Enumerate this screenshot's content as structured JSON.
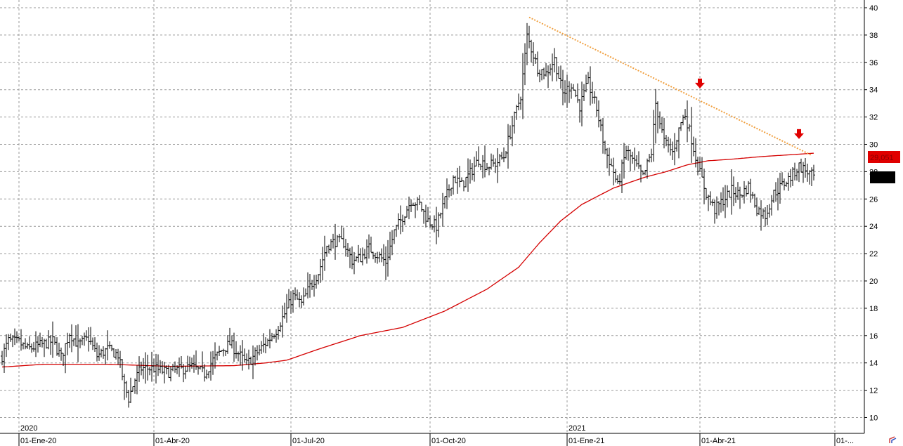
{
  "chart_data": {
    "type": "bar",
    "subtype": "ohlc",
    "title": "",
    "xlabel": "",
    "ylabel": "",
    "ylim": [
      9,
      40.5
    ],
    "y_ticks": [
      10,
      12,
      14,
      16,
      18,
      20,
      22,
      24,
      26,
      28,
      30,
      32,
      34,
      36,
      38,
      40
    ],
    "y_tick_labels": [
      "10",
      "12",
      "14",
      "16",
      "18",
      "20",
      "22",
      "24",
      "26",
      "28",
      "30",
      "32",
      "34",
      "36",
      "38",
      "40"
    ],
    "x_ticks": [
      {
        "label": "01-Ene-20",
        "index": 8
      },
      {
        "label": "01-Abr-20",
        "index": 72
      },
      {
        "label": "01-Jul-20",
        "index": 137
      },
      {
        "label": "01-Oct-20",
        "index": 203
      },
      {
        "label": "01-Ene-21",
        "index": 268
      },
      {
        "label": "01-Abr-21",
        "index": 331
      },
      {
        "label": "01-...",
        "index": 395
      }
    ],
    "year_labels": [
      {
        "label": "2020",
        "index": 8
      },
      {
        "label": "2021",
        "index": 268
      }
    ],
    "last_price_label": "29,051",
    "grid": true,
    "colors": {
      "price_bars": "#000000",
      "moving_average": "#d40000",
      "trendline": "#f0a040",
      "arrows": "#e00000",
      "price_tag_bg": "#e00000",
      "grid": "#9a9a9a"
    },
    "price_anchors": [
      [
        0,
        14.5
      ],
      [
        3,
        15.6
      ],
      [
        8,
        15.5
      ],
      [
        12,
        15.0
      ],
      [
        18,
        15.3
      ],
      [
        24,
        15.6
      ],
      [
        28,
        14.4
      ],
      [
        32,
        16.2
      ],
      [
        36,
        15.3
      ],
      [
        41,
        15.8
      ],
      [
        45,
        14.5
      ],
      [
        50,
        15.0
      ],
      [
        55,
        14.6
      ],
      [
        58,
        12.3
      ],
      [
        60,
        11.4
      ],
      [
        63,
        12.8
      ],
      [
        66,
        13.6
      ],
      [
        72,
        13.6
      ],
      [
        78,
        13.3
      ],
      [
        84,
        13.5
      ],
      [
        90,
        13.7
      ],
      [
        96,
        13.2
      ],
      [
        100,
        14.2
      ],
      [
        104,
        14.9
      ],
      [
        108,
        15.4
      ],
      [
        112,
        14.7
      ],
      [
        116,
        13.9
      ],
      [
        120,
        14.6
      ],
      [
        126,
        15.6
      ],
      [
        130,
        16.4
      ],
      [
        134,
        17.6
      ],
      [
        138,
        18.9
      ],
      [
        142,
        18.3
      ],
      [
        146,
        19.6
      ],
      [
        150,
        20.6
      ],
      [
        154,
        22.6
      ],
      [
        158,
        22.9
      ],
      [
        162,
        22.8
      ],
      [
        166,
        21.5
      ],
      [
        170,
        21.7
      ],
      [
        174,
        22.4
      ],
      [
        178,
        21.9
      ],
      [
        182,
        21.4
      ],
      [
        186,
        23.6
      ],
      [
        190,
        24.7
      ],
      [
        194,
        25.9
      ],
      [
        198,
        25.6
      ],
      [
        202,
        24.4
      ],
      [
        206,
        24.0
      ],
      [
        210,
        25.9
      ],
      [
        214,
        27.6
      ],
      [
        218,
        27.0
      ],
      [
        222,
        27.9
      ],
      [
        226,
        28.9
      ],
      [
        230,
        28.4
      ],
      [
        234,
        28.6
      ],
      [
        238,
        29.1
      ],
      [
        242,
        31.4
      ],
      [
        246,
        33.6
      ],
      [
        249,
        37.9
      ],
      [
        251,
        37.0
      ],
      [
        254,
        35.6
      ],
      [
        258,
        35.2
      ],
      [
        262,
        36.2
      ],
      [
        266,
        33.7
      ],
      [
        270,
        34.4
      ],
      [
        274,
        32.8
      ],
      [
        278,
        34.5
      ],
      [
        282,
        32.6
      ],
      [
        286,
        29.6
      ],
      [
        290,
        28.0
      ],
      [
        292,
        26.9
      ],
      [
        296,
        29.6
      ],
      [
        300,
        28.6
      ],
      [
        304,
        27.6
      ],
      [
        308,
        29.4
      ],
      [
        310,
        33.0
      ],
      [
        314,
        30.2
      ],
      [
        318,
        29.4
      ],
      [
        322,
        31.6
      ],
      [
        324,
        32.2
      ],
      [
        327,
        30.4
      ],
      [
        330,
        28.4
      ],
      [
        334,
        26.4
      ],
      [
        338,
        25.2
      ],
      [
        342,
        25.9
      ],
      [
        346,
        26.6
      ],
      [
        350,
        26.3
      ],
      [
        354,
        26.9
      ],
      [
        358,
        25.3
      ],
      [
        362,
        24.8
      ],
      [
        366,
        26.4
      ],
      [
        370,
        27.0
      ],
      [
        374,
        27.6
      ],
      [
        378,
        28.4
      ],
      [
        382,
        28.0
      ],
      [
        385,
        27.6
      ]
    ],
    "moving_average_anchors": [
      [
        0,
        13.7
      ],
      [
        20,
        13.9
      ],
      [
        50,
        13.9
      ],
      [
        80,
        13.75
      ],
      [
        110,
        13.8
      ],
      [
        125,
        14.0
      ],
      [
        135,
        14.2
      ],
      [
        150,
        15.0
      ],
      [
        170,
        16.0
      ],
      [
        190,
        16.6
      ],
      [
        210,
        17.8
      ],
      [
        230,
        19.4
      ],
      [
        245,
        21.0
      ],
      [
        255,
        22.8
      ],
      [
        265,
        24.4
      ],
      [
        275,
        25.6
      ],
      [
        290,
        26.8
      ],
      [
        305,
        27.6
      ],
      [
        315,
        28.0
      ],
      [
        325,
        28.5
      ],
      [
        335,
        28.8
      ],
      [
        345,
        28.9
      ],
      [
        360,
        29.1
      ],
      [
        375,
        29.25
      ],
      [
        385,
        29.35
      ]
    ],
    "trendline": {
      "from": [
        250,
        39.3
      ],
      "to": [
        384,
        29.2
      ]
    },
    "arrows": [
      {
        "index": 331,
        "value": 34.3
      },
      {
        "index": 378,
        "value": 30.6
      }
    ]
  }
}
